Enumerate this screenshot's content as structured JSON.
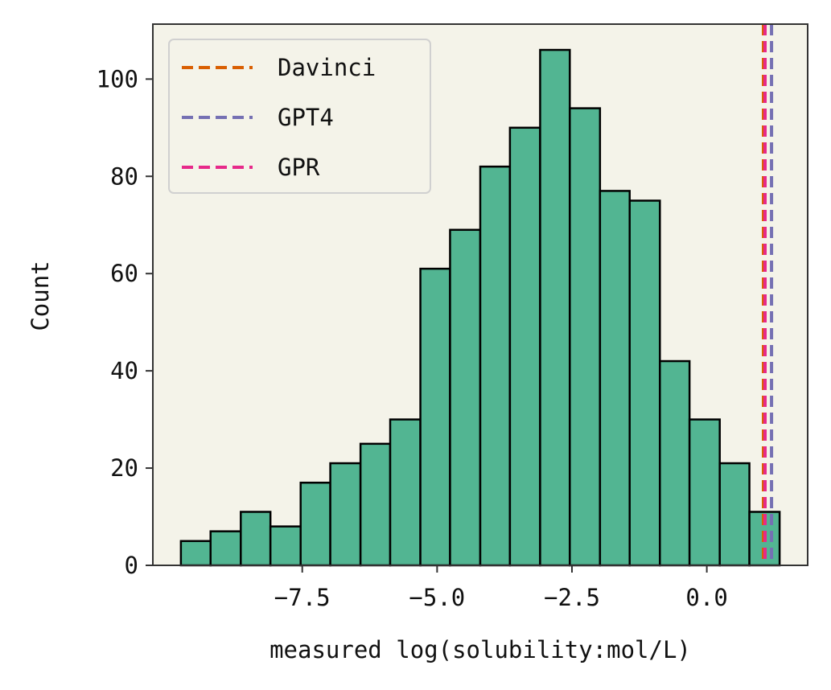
{
  "chart_data": {
    "type": "bar",
    "title": "",
    "xlabel": "measured log(solubility:mol/L)",
    "ylabel": "Count",
    "bin_edges": [
      -9.75,
      -9.2,
      -8.64,
      -8.09,
      -7.53,
      -6.98,
      -6.42,
      -5.87,
      -5.31,
      -4.76,
      -4.2,
      -3.65,
      -3.09,
      -2.54,
      -1.98,
      -1.43,
      -0.87,
      -0.32,
      0.24,
      0.79,
      1.35
    ],
    "values": [
      5,
      7,
      11,
      8,
      17,
      21,
      25,
      30,
      61,
      69,
      82,
      90,
      106,
      94,
      77,
      75,
      42,
      30,
      21,
      11
    ],
    "xlim": [
      -10.27,
      1.87
    ],
    "ylim": [
      0,
      111.3
    ],
    "x_ticks": [
      -7.5,
      -5.0,
      -2.5,
      0.0
    ],
    "x_tick_labels": [
      "−7.5",
      "−5.0",
      "−2.5",
      "0.0"
    ],
    "y_ticks": [
      0,
      20,
      40,
      60,
      80,
      100
    ],
    "y_tick_labels": [
      "0",
      "20",
      "40",
      "60",
      "80",
      "100"
    ],
    "lines": [
      {
        "name": "Davinci",
        "x": 1.05,
        "color": "#d95f02"
      },
      {
        "name": "GPT4",
        "x": 1.2,
        "color": "#7570b3"
      },
      {
        "name": "GPR",
        "x": 1.08,
        "color": "#e7298a"
      }
    ],
    "legend_position": "top-left",
    "bar_color": "#52b592",
    "bar_edge_color": "#000000",
    "plot_background": "#f4f3e9",
    "grid": false
  }
}
